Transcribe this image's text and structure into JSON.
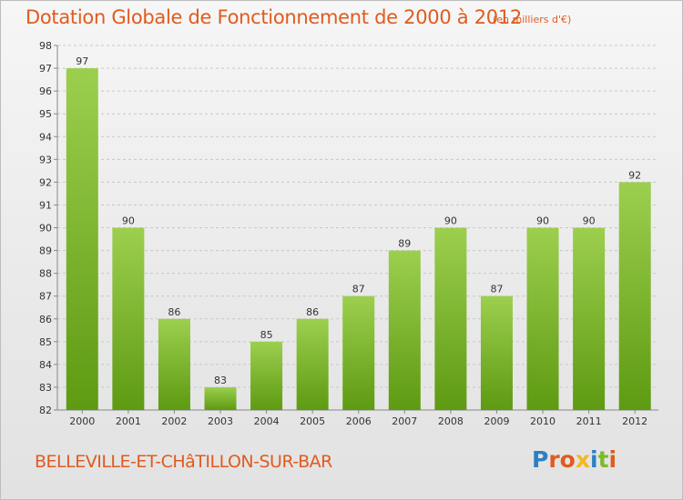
{
  "header": {
    "title": "Dotation Globale de Fonctionnement de 2000 à 2012",
    "unit": "(en milliers d'€)"
  },
  "footer": {
    "commune": "BELLEVILLE-ET-CHâTILLON-SUR-BAR",
    "brand": "Proxiti"
  },
  "colors": {
    "title": "#e05b1f",
    "bar_top": "#9ccf4e",
    "bar_bottom": "#5e9a12",
    "brand_letters": [
      "#2e7fc4",
      "#e05b1f",
      "#e05b1f",
      "#f2b81f",
      "#2e7fc4",
      "#7cbb2a",
      "#e05b1f"
    ]
  },
  "chart_data": {
    "type": "bar",
    "title": "Dotation Globale de Fonctionnement de 2000 à 2012",
    "ylabel": "",
    "xlabel": "",
    "categories": [
      "2000",
      "2001",
      "2002",
      "2003",
      "2004",
      "2005",
      "2006",
      "2007",
      "2008",
      "2009",
      "2010",
      "2011",
      "2012"
    ],
    "values": [
      97,
      90,
      86,
      83,
      85,
      86,
      87,
      89,
      90,
      87,
      90,
      90,
      92
    ],
    "ylim": [
      82,
      98
    ],
    "yticks": [
      82,
      83,
      84,
      85,
      86,
      87,
      88,
      89,
      90,
      91,
      92,
      93,
      94,
      95,
      96,
      97,
      98
    ],
    "grid": true,
    "legend": "none"
  }
}
